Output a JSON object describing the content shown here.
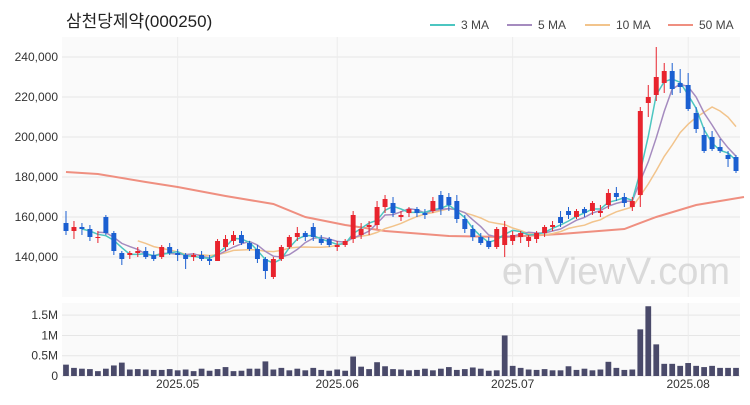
{
  "chart_data": [
    {
      "type": "candlestick",
      "title": "삼천당제약(000250)",
      "legend_position": "top-right",
      "grid": true,
      "ylim": [
        120000,
        250000
      ],
      "yticks": [
        "140,000",
        "160,000",
        "180,000",
        "200,000",
        "220,000",
        "240,000"
      ],
      "ytick_values": [
        140000,
        160000,
        180000,
        200000,
        220000,
        240000
      ],
      "xticks": [
        {
          "index": 14,
          "label": "2025.05"
        },
        {
          "index": 34,
          "label": "2025.06"
        },
        {
          "index": 56,
          "label": "2025.07"
        },
        {
          "index": 78,
          "label": "2025.08"
        }
      ],
      "colors": {
        "up": "#e8232d",
        "down": "#1b5fd1"
      },
      "candles": [
        [
          157000,
          163000,
          151000,
          153000
        ],
        [
          153000,
          158000,
          149000,
          155000
        ],
        [
          155000,
          157000,
          151000,
          154000
        ],
        [
          154000,
          156000,
          148000,
          150000
        ],
        [
          150000,
          153000,
          147000,
          150000
        ],
        [
          160000,
          161000,
          151000,
          152000
        ],
        [
          152000,
          153000,
          141000,
          143000
        ],
        [
          142000,
          143000,
          136000,
          139000
        ],
        [
          141000,
          143000,
          139000,
          142000
        ],
        [
          142000,
          145000,
          140000,
          143000
        ],
        [
          143000,
          145000,
          139000,
          140000
        ],
        [
          141000,
          143000,
          138000,
          139000
        ],
        [
          140000,
          146000,
          139000,
          145000
        ],
        [
          145000,
          147000,
          141000,
          142000
        ],
        [
          142000,
          144000,
          138000,
          141000
        ],
        [
          141000,
          142000,
          134000,
          139000
        ],
        [
          140000,
          142000,
          138000,
          141000
        ],
        [
          141000,
          143000,
          138000,
          139000
        ],
        [
          139000,
          141000,
          136000,
          138000
        ],
        [
          138000,
          149000,
          138000,
          148000
        ],
        [
          145000,
          151000,
          143000,
          149000
        ],
        [
          148000,
          153000,
          146000,
          151000
        ],
        [
          151000,
          153000,
          146000,
          147000
        ],
        [
          147000,
          148000,
          143000,
          144000
        ],
        [
          144000,
          146000,
          137000,
          139000
        ],
        [
          139000,
          140000,
          129000,
          133000
        ],
        [
          130000,
          140000,
          129000,
          139000
        ],
        [
          139000,
          146000,
          138000,
          145000
        ],
        [
          145000,
          151000,
          144000,
          150000
        ],
        [
          150000,
          155000,
          148000,
          152000
        ],
        [
          152000,
          153000,
          148000,
          150000
        ],
        [
          155000,
          157000,
          148000,
          150000
        ],
        [
          149000,
          151000,
          146000,
          147000
        ],
        [
          149000,
          150000,
          145000,
          146000
        ],
        [
          145000,
          148000,
          143000,
          146000
        ],
        [
          146000,
          149000,
          145000,
          148000
        ],
        [
          149000,
          163000,
          147000,
          161000
        ],
        [
          151000,
          157000,
          149000,
          154000
        ],
        [
          155000,
          158000,
          151000,
          156000
        ],
        [
          156000,
          168000,
          154000,
          165000
        ],
        [
          165000,
          171000,
          162000,
          169000
        ],
        [
          167000,
          170000,
          160000,
          162000
        ],
        [
          160000,
          163000,
          158000,
          161000
        ],
        [
          162000,
          165000,
          160000,
          164000
        ],
        [
          164000,
          165000,
          160000,
          162000
        ],
        [
          162000,
          164000,
          159000,
          161000
        ],
        [
          163000,
          170000,
          162000,
          168000
        ],
        [
          171000,
          173000,
          161000,
          164000
        ],
        [
          170000,
          172000,
          163000,
          166000
        ],
        [
          168000,
          171000,
          157000,
          159000
        ],
        [
          159000,
          161000,
          152000,
          154000
        ],
        [
          154000,
          156000,
          148000,
          150000
        ],
        [
          150000,
          152000,
          146000,
          147000
        ],
        [
          148000,
          150000,
          144000,
          145000
        ],
        [
          145000,
          155000,
          144000,
          154000
        ],
        [
          146000,
          158000,
          140000,
          155000
        ],
        [
          148000,
          153000,
          146000,
          151000
        ],
        [
          150000,
          153000,
          147000,
          152000
        ],
        [
          148000,
          151000,
          145000,
          150000
        ],
        [
          149000,
          153000,
          147000,
          152000
        ],
        [
          152000,
          156000,
          150000,
          155000
        ],
        [
          155000,
          158000,
          153000,
          156000
        ],
        [
          160000,
          163000,
          155000,
          157000
        ],
        [
          163000,
          165000,
          159000,
          161000
        ],
        [
          160000,
          164000,
          159000,
          163000
        ],
        [
          164000,
          165000,
          160000,
          162000
        ],
        [
          163000,
          168000,
          161000,
          167000
        ],
        [
          162000,
          166000,
          160000,
          163000
        ],
        [
          166000,
          174000,
          164000,
          172000
        ],
        [
          172000,
          175000,
          168000,
          170000
        ],
        [
          170000,
          172000,
          165000,
          167000
        ],
        [
          165000,
          170000,
          163000,
          168000
        ],
        [
          171000,
          215000,
          165000,
          213000
        ],
        [
          217000,
          226000,
          210000,
          220000
        ],
        [
          221000,
          245000,
          218000,
          230000
        ],
        [
          227000,
          237000,
          222000,
          233000
        ],
        [
          233000,
          237000,
          221000,
          224000
        ],
        [
          227000,
          234000,
          222000,
          225000
        ],
        [
          226000,
          232000,
          213000,
          214000
        ],
        [
          212000,
          215000,
          202000,
          204000
        ],
        [
          201000,
          205000,
          192000,
          193000
        ],
        [
          200000,
          203000,
          193000,
          194000
        ],
        [
          195000,
          199000,
          192000,
          193000
        ],
        [
          191000,
          193000,
          185000,
          189000
        ],
        [
          190000,
          191000,
          182000,
          183000
        ]
      ],
      "series": [
        {
          "name": "3 MA",
          "color": "#4cc6c1"
        },
        {
          "name": "5 MA",
          "color": "#a58bbf"
        },
        {
          "name": "10 MA",
          "color": "#f2c48c"
        },
        {
          "name": "50 MA",
          "color": "#ef8f80"
        }
      ],
      "ma50_values": [
        [
          0,
          182500
        ],
        [
          4,
          181500
        ],
        [
          10,
          177500
        ],
        [
          14,
          175000
        ],
        [
          20,
          170500
        ],
        [
          26,
          166500
        ],
        [
          30,
          160000
        ],
        [
          35,
          156000
        ],
        [
          40,
          153000
        ],
        [
          48,
          150500
        ],
        [
          55,
          150000
        ],
        [
          62,
          151500
        ],
        [
          70,
          154000
        ],
        [
          74,
          160000
        ],
        [
          79,
          166000
        ],
        [
          85,
          170000
        ]
      ]
    },
    {
      "type": "bar",
      "series_name": "volume",
      "ylim": [
        0,
        1800000
      ],
      "yticks": [
        "0",
        "0.5M",
        "1M",
        "1.5M"
      ],
      "ytick_values": [
        0,
        500000,
        1000000,
        1500000
      ],
      "color": "#4a4a6a",
      "values": [
        280000,
        200000,
        180000,
        170000,
        120000,
        180000,
        260000,
        330000,
        160000,
        170000,
        160000,
        150000,
        150000,
        170000,
        140000,
        160000,
        120000,
        180000,
        130000,
        170000,
        220000,
        120000,
        130000,
        180000,
        180000,
        360000,
        160000,
        200000,
        140000,
        180000,
        140000,
        200000,
        150000,
        130000,
        160000,
        130000,
        480000,
        230000,
        170000,
        340000,
        240000,
        170000,
        160000,
        140000,
        150000,
        180000,
        140000,
        180000,
        220000,
        150000,
        170000,
        210000,
        180000,
        130000,
        140000,
        1000000,
        250000,
        200000,
        160000,
        150000,
        170000,
        140000,
        140000,
        240000,
        150000,
        180000,
        140000,
        160000,
        350000,
        200000,
        150000,
        160000,
        1150000,
        1720000,
        780000,
        300000,
        300000,
        250000,
        320000,
        250000,
        220000,
        250000,
        200000,
        200000,
        200000
      ]
    }
  ],
  "legend": [
    {
      "label": "3 MA",
      "color": "#4cc6c1"
    },
    {
      "label": "5 MA",
      "color": "#a58bbf"
    },
    {
      "label": "10 MA",
      "color": "#f2c48c"
    },
    {
      "label": "50 MA",
      "color": "#ef8f80"
    }
  ],
  "watermark": "enViewV.com"
}
